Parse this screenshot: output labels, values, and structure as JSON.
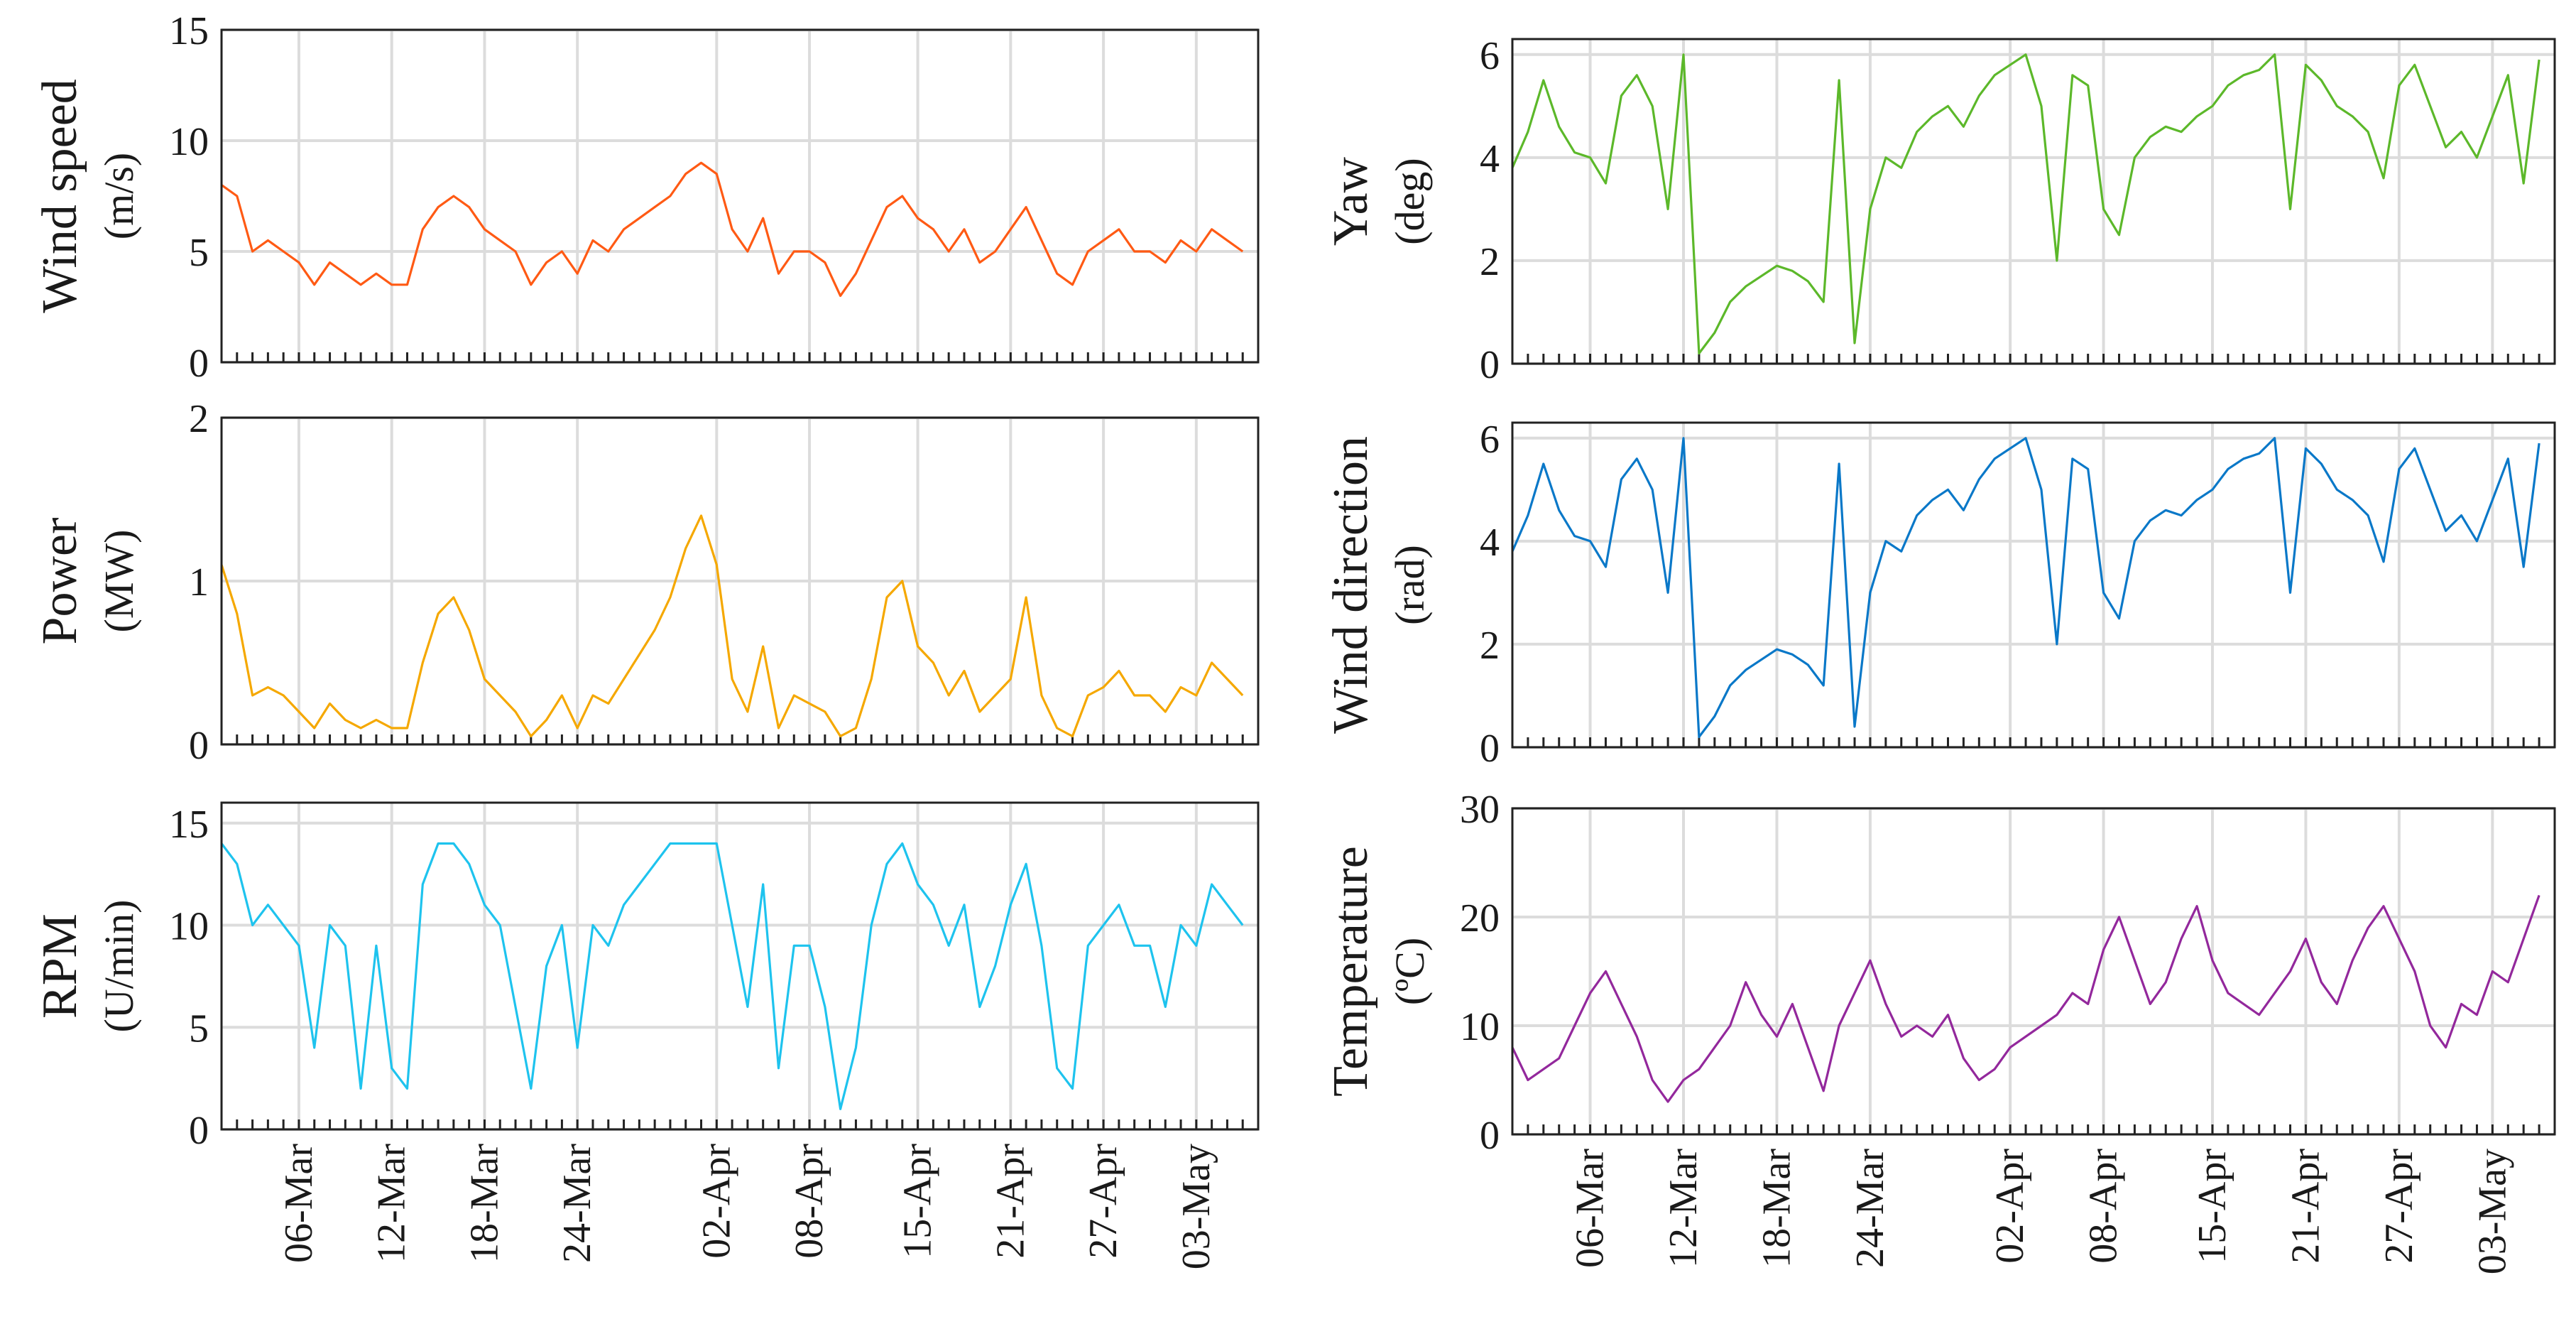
{
  "chart_data": [
    {
      "type": "line",
      "name": "wind-speed",
      "ylabel": "Wind speed",
      "yunit": "(m/s)",
      "ylim": [
        0,
        15
      ],
      "yticks": [
        0,
        5,
        10,
        15
      ],
      "color": "#ff5a14",
      "x_tick_labels": [
        "06-Mar",
        "12-Mar",
        "18-Mar",
        "24-Mar",
        "02-Apr",
        "08-Apr",
        "15-Apr",
        "21-Apr",
        "27-Apr",
        "03-May"
      ],
      "x_tick_days": [
        5,
        11,
        17,
        23,
        32,
        38,
        45,
        51,
        57,
        63
      ],
      "xlim_days": [
        0,
        67
      ],
      "grid": true,
      "series": [
        {
          "name": "Wind speed",
          "x_days": [
            0,
            1,
            2,
            3,
            4,
            5,
            6,
            7,
            8,
            9,
            10,
            11,
            12,
            13,
            14,
            15,
            16,
            17,
            18,
            19,
            20,
            21,
            22,
            23,
            24,
            25,
            26,
            27,
            28,
            29,
            30,
            31,
            32,
            33,
            34,
            35,
            36,
            37,
            38,
            39,
            40,
            41,
            42,
            43,
            44,
            45,
            46,
            47,
            48,
            49,
            50,
            51,
            52,
            53,
            54,
            55,
            56,
            57,
            58,
            59,
            60,
            61,
            62,
            63,
            64,
            65,
            66
          ],
          "values": [
            8,
            7.5,
            5,
            5.5,
            5,
            4.5,
            3.5,
            4.5,
            4,
            3.5,
            4,
            3.5,
            3.5,
            6,
            7,
            7.5,
            7,
            6,
            5.5,
            5,
            3.5,
            4.5,
            5,
            4,
            5.5,
            5,
            6,
            6.5,
            7,
            7.5,
            8.5,
            9,
            8.5,
            6,
            5,
            6.5,
            4,
            5,
            5,
            4.5,
            3,
            4,
            5.5,
            7,
            7.5,
            6.5,
            6,
            5,
            6,
            4.5,
            5,
            6,
            7,
            5.5,
            4,
            3.5,
            5,
            5.5,
            6,
            5,
            5,
            4.5,
            5.5,
            5,
            6,
            5.5,
            5
          ]
        }
      ]
    },
    {
      "type": "line",
      "name": "power",
      "ylabel": "Power",
      "yunit": "(MW)",
      "ylim": [
        0,
        2
      ],
      "yticks": [
        0,
        1,
        2
      ],
      "color": "#f5a800",
      "x_tick_labels": [
        "06-Mar",
        "12-Mar",
        "18-Mar",
        "24-Mar",
        "02-Apr",
        "08-Apr",
        "15-Apr",
        "21-Apr",
        "27-Apr",
        "03-May"
      ],
      "x_tick_days": [
        5,
        11,
        17,
        23,
        32,
        38,
        45,
        51,
        57,
        63
      ],
      "xlim_days": [
        0,
        67
      ],
      "grid": true,
      "series": [
        {
          "name": "Power",
          "x_days": [
            0,
            1,
            2,
            3,
            4,
            5,
            6,
            7,
            8,
            9,
            10,
            11,
            12,
            13,
            14,
            15,
            16,
            17,
            18,
            19,
            20,
            21,
            22,
            23,
            24,
            25,
            26,
            27,
            28,
            29,
            30,
            31,
            32,
            33,
            34,
            35,
            36,
            37,
            38,
            39,
            40,
            41,
            42,
            43,
            44,
            45,
            46,
            47,
            48,
            49,
            50,
            51,
            52,
            53,
            54,
            55,
            56,
            57,
            58,
            59,
            60,
            61,
            62,
            63,
            64,
            65,
            66
          ],
          "values": [
            1.1,
            0.8,
            0.3,
            0.35,
            0.3,
            0.2,
            0.1,
            0.25,
            0.15,
            0.1,
            0.15,
            0.1,
            0.1,
            0.5,
            0.8,
            0.9,
            0.7,
            0.4,
            0.3,
            0.2,
            0.05,
            0.15,
            0.3,
            0.1,
            0.3,
            0.25,
            0.4,
            0.55,
            0.7,
            0.9,
            1.2,
            1.4,
            1.1,
            0.4,
            0.2,
            0.6,
            0.1,
            0.3,
            0.25,
            0.2,
            0.05,
            0.1,
            0.4,
            0.9,
            1.0,
            0.6,
            0.5,
            0.3,
            0.45,
            0.2,
            0.3,
            0.4,
            0.9,
            0.3,
            0.1,
            0.05,
            0.3,
            0.35,
            0.45,
            0.3,
            0.3,
            0.2,
            0.35,
            0.3,
            0.5,
            0.4,
            0.3
          ]
        }
      ]
    },
    {
      "type": "line",
      "name": "rpm",
      "ylabel": "RPM",
      "yunit": "(U/min)",
      "ylim": [
        0,
        16
      ],
      "yticks": [
        0,
        5,
        10,
        15
      ],
      "color": "#1ec3ee",
      "x_tick_labels": [
        "06-Mar",
        "12-Mar",
        "18-Mar",
        "24-Mar",
        "02-Apr",
        "08-Apr",
        "15-Apr",
        "21-Apr",
        "27-Apr",
        "03-May"
      ],
      "x_tick_days": [
        5,
        11,
        17,
        23,
        32,
        38,
        45,
        51,
        57,
        63
      ],
      "xlim_days": [
        0,
        67
      ],
      "grid": true,
      "series": [
        {
          "name": "RPM",
          "x_days": [
            0,
            1,
            2,
            3,
            4,
            5,
            6,
            7,
            8,
            9,
            10,
            11,
            12,
            13,
            14,
            15,
            16,
            17,
            18,
            19,
            20,
            21,
            22,
            23,
            24,
            25,
            26,
            27,
            28,
            29,
            30,
            31,
            32,
            33,
            34,
            35,
            36,
            37,
            38,
            39,
            40,
            41,
            42,
            43,
            44,
            45,
            46,
            47,
            48,
            49,
            50,
            51,
            52,
            53,
            54,
            55,
            56,
            57,
            58,
            59,
            60,
            61,
            62,
            63,
            64,
            65,
            66
          ],
          "values": [
            14,
            13,
            10,
            11,
            10,
            9,
            4,
            10,
            9,
            2,
            9,
            3,
            2,
            12,
            14,
            14,
            13,
            11,
            10,
            6,
            2,
            8,
            10,
            4,
            10,
            9,
            11,
            12,
            13,
            14,
            14,
            14,
            14,
            10,
            6,
            12,
            3,
            9,
            9,
            6,
            1,
            4,
            10,
            13,
            14,
            12,
            11,
            9,
            11,
            6,
            8,
            11,
            13,
            9,
            3,
            2,
            9,
            10,
            11,
            9,
            9,
            6,
            10,
            9,
            12,
            11,
            10
          ]
        }
      ]
    },
    {
      "type": "line",
      "name": "yaw",
      "ylabel": "Yaw",
      "yunit": "(deg)",
      "ylim": [
        0,
        6.3
      ],
      "yticks": [
        0,
        2,
        4,
        6
      ],
      "color": "#5cb82a",
      "x_tick_labels": [
        "06-Mar",
        "12-Mar",
        "18-Mar",
        "24-Mar",
        "02-Apr",
        "08-Apr",
        "15-Apr",
        "21-Apr",
        "27-Apr",
        "03-May"
      ],
      "x_tick_days": [
        5,
        11,
        17,
        23,
        32,
        38,
        45,
        51,
        57,
        63
      ],
      "xlim_days": [
        0,
        67
      ],
      "grid": true,
      "series": [
        {
          "name": "Yaw",
          "x_days": [
            0,
            1,
            2,
            3,
            4,
            5,
            6,
            7,
            8,
            9,
            10,
            11,
            12,
            13,
            14,
            15,
            16,
            17,
            18,
            19,
            20,
            21,
            22,
            23,
            24,
            25,
            26,
            27,
            28,
            29,
            30,
            31,
            32,
            33,
            34,
            35,
            36,
            37,
            38,
            39,
            40,
            41,
            42,
            43,
            44,
            45,
            46,
            47,
            48,
            49,
            50,
            51,
            52,
            53,
            54,
            55,
            56,
            57,
            58,
            59,
            60,
            61,
            62,
            63,
            64,
            65,
            66
          ],
          "values": [
            3.8,
            4.5,
            5.5,
            4.6,
            4.1,
            4.0,
            3.5,
            5.2,
            5.6,
            5.0,
            3.0,
            6.0,
            0.2,
            0.6,
            1.2,
            1.5,
            1.7,
            1.9,
            1.8,
            1.6,
            1.2,
            5.5,
            0.4,
            3.0,
            4.0,
            3.8,
            4.5,
            4.8,
            5.0,
            4.6,
            5.2,
            5.6,
            5.8,
            6.0,
            5.0,
            2.0,
            5.6,
            5.4,
            3.0,
            2.5,
            4.0,
            4.4,
            4.6,
            4.5,
            4.8,
            5.0,
            5.4,
            5.6,
            5.7,
            6.0,
            3.0,
            5.8,
            5.5,
            5.0,
            4.8,
            4.5,
            3.6,
            5.4,
            5.8,
            5.0,
            4.2,
            4.5,
            4.0,
            4.8,
            5.6,
            3.5,
            5.9
          ]
        }
      ]
    },
    {
      "type": "line",
      "name": "wind-direction",
      "ylabel": "Wind direction",
      "yunit": "(rad)",
      "ylim": [
        0,
        6.3
      ],
      "yticks": [
        0,
        2,
        4,
        6
      ],
      "color": "#0a78c8",
      "x_tick_labels": [
        "06-Mar",
        "12-Mar",
        "18-Mar",
        "24-Mar",
        "02-Apr",
        "08-Apr",
        "15-Apr",
        "21-Apr",
        "27-Apr",
        "03-May"
      ],
      "x_tick_days": [
        5,
        11,
        17,
        23,
        32,
        38,
        45,
        51,
        57,
        63
      ],
      "xlim_days": [
        0,
        67
      ],
      "grid": true,
      "series": [
        {
          "name": "Wind direction",
          "x_days": [
            0,
            1,
            2,
            3,
            4,
            5,
            6,
            7,
            8,
            9,
            10,
            11,
            12,
            13,
            14,
            15,
            16,
            17,
            18,
            19,
            20,
            21,
            22,
            23,
            24,
            25,
            26,
            27,
            28,
            29,
            30,
            31,
            32,
            33,
            34,
            35,
            36,
            37,
            38,
            39,
            40,
            41,
            42,
            43,
            44,
            45,
            46,
            47,
            48,
            49,
            50,
            51,
            52,
            53,
            54,
            55,
            56,
            57,
            58,
            59,
            60,
            61,
            62,
            63,
            64,
            65,
            66
          ],
          "values": [
            3.8,
            4.5,
            5.5,
            4.6,
            4.1,
            4.0,
            3.5,
            5.2,
            5.6,
            5.0,
            3.0,
            6.0,
            0.2,
            0.6,
            1.2,
            1.5,
            1.7,
            1.9,
            1.8,
            1.6,
            1.2,
            5.5,
            0.4,
            3.0,
            4.0,
            3.8,
            4.5,
            4.8,
            5.0,
            4.6,
            5.2,
            5.6,
            5.8,
            6.0,
            5.0,
            2.0,
            5.6,
            5.4,
            3.0,
            2.5,
            4.0,
            4.4,
            4.6,
            4.5,
            4.8,
            5.0,
            5.4,
            5.6,
            5.7,
            6.0,
            3.0,
            5.8,
            5.5,
            5.0,
            4.8,
            4.5,
            3.6,
            5.4,
            5.8,
            5.0,
            4.2,
            4.5,
            4.0,
            4.8,
            5.6,
            3.5,
            5.9
          ]
        }
      ]
    },
    {
      "type": "line",
      "name": "temperature",
      "ylabel": "Temperature",
      "yunit": "(ºC)",
      "ylim": [
        0,
        30
      ],
      "yticks": [
        0,
        10,
        20,
        30
      ],
      "color": "#93289c",
      "x_tick_labels": [
        "06-Mar",
        "12-Mar",
        "18-Mar",
        "24-Mar",
        "02-Apr",
        "08-Apr",
        "15-Apr",
        "21-Apr",
        "27-Apr",
        "03-May"
      ],
      "x_tick_days": [
        5,
        11,
        17,
        23,
        32,
        38,
        45,
        51,
        57,
        63
      ],
      "xlim_days": [
        0,
        67
      ],
      "grid": true,
      "series": [
        {
          "name": "Temperature",
          "x_days": [
            0,
            1,
            2,
            3,
            4,
            5,
            6,
            7,
            8,
            9,
            10,
            11,
            12,
            13,
            14,
            15,
            16,
            17,
            18,
            19,
            20,
            21,
            22,
            23,
            24,
            25,
            26,
            27,
            28,
            29,
            30,
            31,
            32,
            33,
            34,
            35,
            36,
            37,
            38,
            39,
            40,
            41,
            42,
            43,
            44,
            45,
            46,
            47,
            48,
            49,
            50,
            51,
            52,
            53,
            54,
            55,
            56,
            57,
            58,
            59,
            60,
            61,
            62,
            63,
            64,
            65,
            66
          ],
          "values": [
            8,
            5,
            6,
            7,
            10,
            13,
            15,
            12,
            9,
            5,
            3,
            5,
            6,
            8,
            10,
            14,
            11,
            9,
            12,
            8,
            4,
            10,
            13,
            16,
            12,
            9,
            10,
            9,
            11,
            7,
            5,
            6,
            8,
            9,
            10,
            11,
            13,
            12,
            17,
            20,
            16,
            12,
            14,
            18,
            21,
            16,
            13,
            12,
            11,
            13,
            15,
            18,
            14,
            12,
            16,
            19,
            21,
            18,
            15,
            10,
            8,
            12,
            11,
            15,
            14,
            18,
            22
          ]
        }
      ]
    }
  ]
}
